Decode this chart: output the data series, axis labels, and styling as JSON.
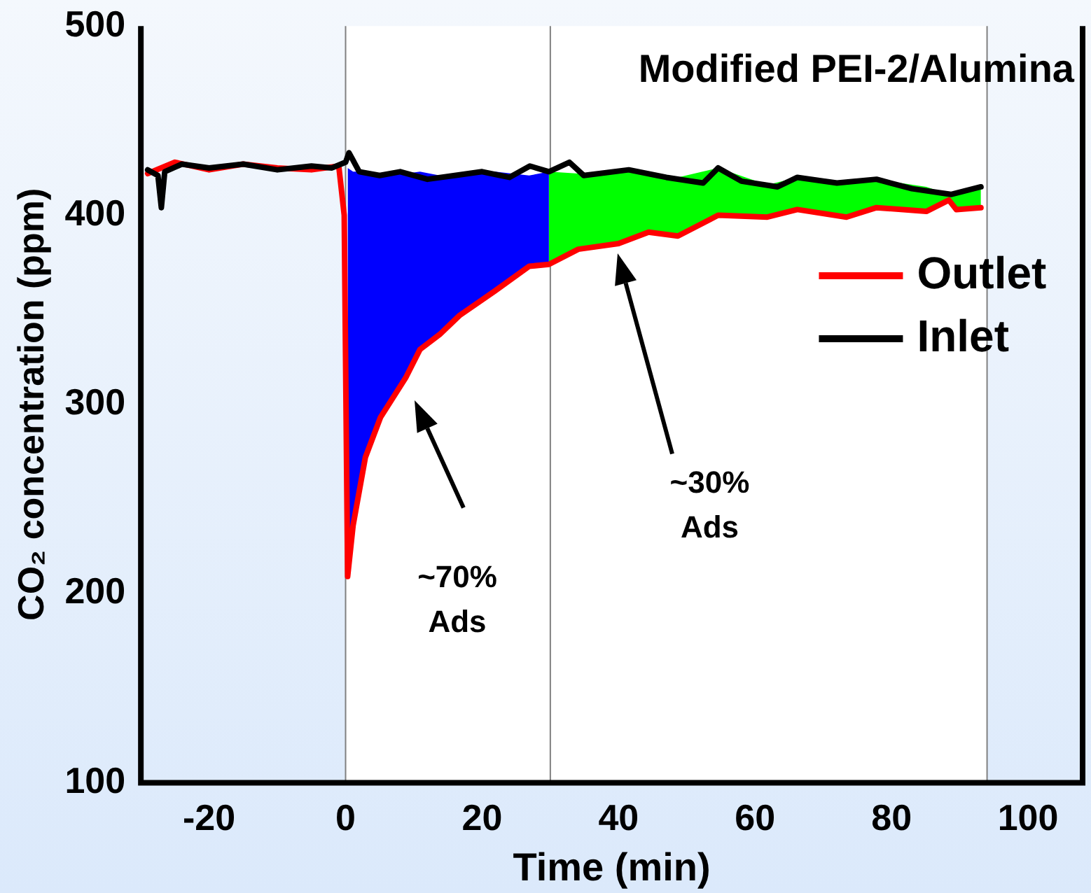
{
  "chart_data": {
    "type": "line",
    "title": "Modified PEI-2/Alumina",
    "xlabel": "Time (min)",
    "ylabel": "CO₂ concentration (ppm)",
    "xlim": [
      -30,
      108
    ],
    "xticks": [
      -20,
      0,
      20,
      40,
      60,
      80,
      100
    ],
    "ylim": [
      100,
      500
    ],
    "yticks": [
      100,
      200,
      300,
      400,
      500
    ],
    "grid": false,
    "legend": "right",
    "marker": "none",
    "line_style": "solid",
    "series": [
      {
        "type": "area",
        "color": "#0000ff",
        "x": [
          0.3,
          1.1,
          2.9,
          5.1,
          8.8,
          10.9,
          13.8,
          16.7,
          21.9,
          26.9,
          29.8
        ],
        "values": [
          425,
          423,
          423,
          421,
          422,
          423,
          421,
          421,
          423,
          421,
          423
        ]
      },
      {
        "type": "area",
        "color": "#00ff00",
        "x": [
          29.8,
          34.1,
          40,
          44.4,
          48.7,
          54.6,
          61.8,
          66.2,
          73.4,
          77.8,
          85.1,
          88.4,
          89.5,
          93.1
        ],
        "values": [
          423,
          422,
          424,
          422,
          420,
          425,
          416,
          420,
          417,
          419,
          415,
          411,
          412,
          415
        ]
      },
      {
        "name": "Outlet",
        "color": "#ff0000",
        "x": [
          -29,
          -25,
          -20,
          -15,
          -10,
          -5,
          -1,
          -0.2,
          0.3,
          1.1,
          2.9,
          5.1,
          8.8,
          10.9,
          13.8,
          16.7,
          21.9,
          26.9,
          29.8,
          34.1,
          40,
          44.4,
          48.7,
          54.6,
          61.8,
          66.2,
          73.4,
          77.8,
          85.1,
          88.4,
          89.5,
          93.1
        ],
        "values": [
          422,
          428,
          424,
          427,
          425,
          424,
          426,
          400,
          209,
          236,
          272,
          293,
          314,
          329,
          337,
          347,
          360,
          373,
          374,
          382,
          385,
          391,
          389,
          400,
          399,
          403,
          399,
          404,
          402,
          408,
          403,
          404
        ]
      },
      {
        "name": "Inlet",
        "color": "#000000",
        "x": [
          -29,
          -27.5,
          -27,
          -26.5,
          -24,
          -20,
          -15,
          -10,
          -5,
          -2,
          0,
          0.5,
          2,
          5,
          8,
          12,
          16,
          20,
          24,
          27,
          29.8,
          32.8,
          34.9,
          41.5,
          47,
          52.4,
          54.6,
          58,
          63.3,
          66.2,
          72,
          77.8,
          83,
          88.7,
          93.1
        ],
        "values": [
          424,
          421,
          404,
          423,
          427,
          425,
          427,
          424,
          426,
          425,
          428,
          433,
          423,
          421,
          423,
          419,
          421,
          423,
          420,
          426,
          423,
          428,
          421,
          424,
          420,
          417,
          425,
          418,
          415,
          420,
          417,
          419,
          414,
          411,
          415
        ]
      }
    ],
    "bands": [
      {
        "axis": "x",
        "from": 0,
        "to": 94,
        "color": "#ffffff"
      }
    ],
    "ref_lines": [
      {
        "axis": "x",
        "value": 0,
        "color": "#808080"
      },
      {
        "axis": "x",
        "value": 30,
        "color": "#808080"
      },
      {
        "axis": "x",
        "value": 94,
        "color": "#808080"
      }
    ],
    "annotations": [
      "~70%\nAds",
      "~30%\nAds"
    ]
  }
}
